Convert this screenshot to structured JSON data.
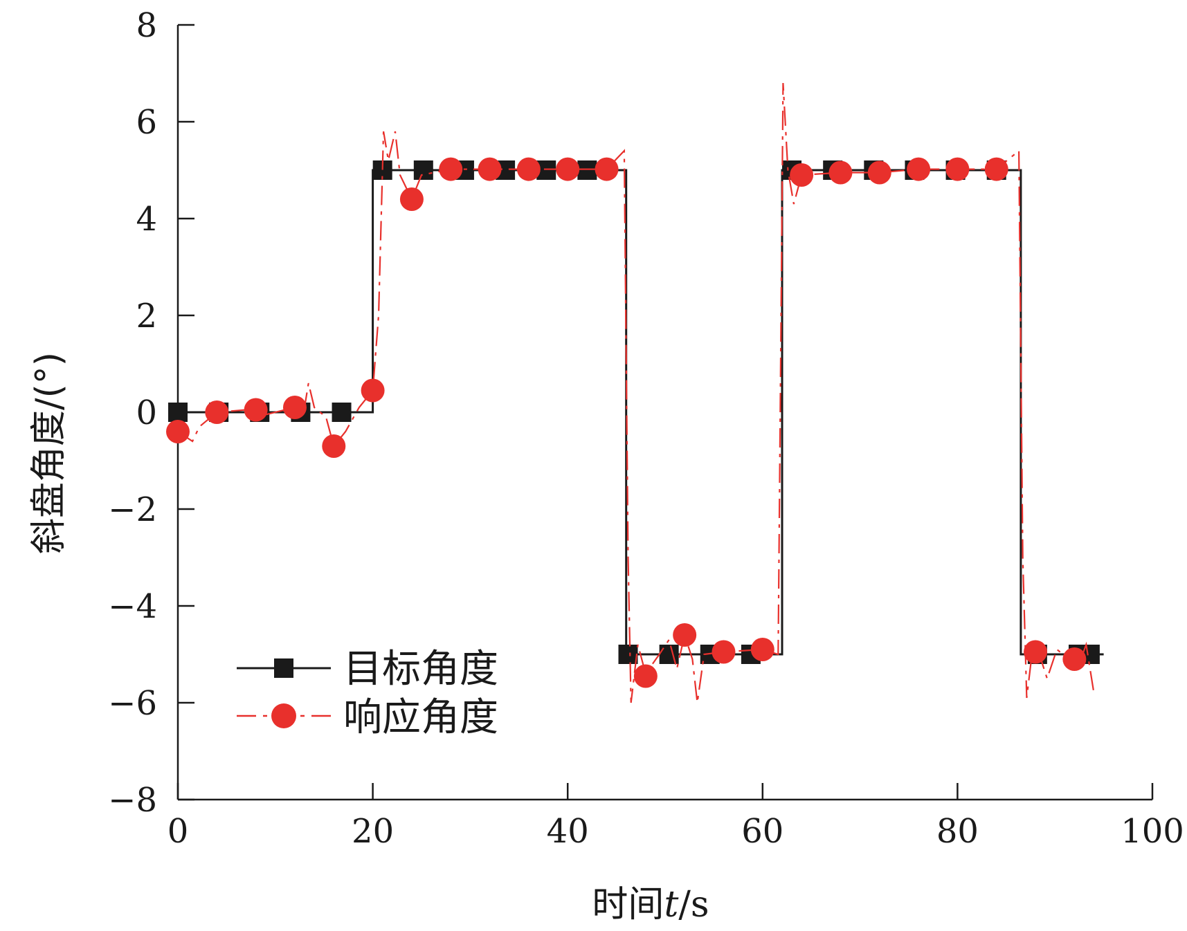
{
  "chart_data": {
    "type": "line",
    "xlabel_prefix": "时间",
    "xlabel_var": "t",
    "xlabel_unit": "/s",
    "ylabel": "斜盘角度/(°)",
    "xlim": [
      0,
      100
    ],
    "ylim": [
      -8,
      8
    ],
    "xticks": [
      0,
      20,
      40,
      60,
      80,
      100
    ],
    "yticks": [
      -8,
      -6,
      -4,
      -2,
      0,
      2,
      4,
      6,
      8
    ],
    "xtick_labels": [
      "0",
      "20",
      "40",
      "60",
      "80",
      "100"
    ],
    "ytick_labels": [
      "−8",
      "−6",
      "−4",
      "−2",
      "0",
      "2",
      "4",
      "6",
      "8"
    ],
    "grid": false,
    "legend_position": "bottom-left",
    "series": [
      {
        "name": "目标角度",
        "color": "#1a1a1a",
        "line_style": "solid",
        "marker": "square",
        "line": [
          [
            0,
            0
          ],
          [
            20,
            0
          ],
          [
            20,
            5
          ],
          [
            46,
            5
          ],
          [
            46,
            -5
          ],
          [
            62,
            -5
          ],
          [
            62,
            5
          ],
          [
            86.5,
            5
          ],
          [
            86.5,
            -5
          ],
          [
            95,
            -5
          ]
        ],
        "markers": [
          [
            0,
            0
          ],
          [
            4.2,
            0
          ],
          [
            8.4,
            0
          ],
          [
            12.6,
            0
          ],
          [
            16.8,
            0
          ],
          [
            21,
            5
          ],
          [
            25.2,
            5
          ],
          [
            29.4,
            5
          ],
          [
            33.6,
            5
          ],
          [
            37.8,
            5
          ],
          [
            42,
            5
          ],
          [
            46.2,
            -5
          ],
          [
            50.4,
            -5
          ],
          [
            54.6,
            -5
          ],
          [
            58.8,
            -5
          ],
          [
            63,
            5
          ],
          [
            67.2,
            5
          ],
          [
            71.4,
            5
          ],
          [
            75.6,
            5
          ],
          [
            79.8,
            5
          ],
          [
            84,
            5
          ],
          [
            88.2,
            -5
          ],
          [
            92.4,
            -5
          ],
          [
            93.6,
            -5
          ]
        ]
      },
      {
        "name": "响应角度",
        "color": "#e8302c",
        "line_style": "dashed",
        "marker": "circle",
        "line": [
          [
            0,
            -0.4
          ],
          [
            1.5,
            -0.6
          ],
          [
            2.2,
            -0.3
          ],
          [
            4,
            0
          ],
          [
            7,
            0.05
          ],
          [
            9,
            -0.05
          ],
          [
            11,
            0.05
          ],
          [
            13,
            0.1
          ],
          [
            13.4,
            0.6
          ],
          [
            14,
            0.1
          ],
          [
            15.2,
            -0.1
          ],
          [
            16,
            -0.7
          ],
          [
            17.2,
            -0.4
          ],
          [
            18.6,
            0.1
          ],
          [
            20,
            0.45
          ],
          [
            20.6,
            2
          ],
          [
            21.1,
            5.8
          ],
          [
            21.6,
            5.2
          ],
          [
            22.3,
            5.8
          ],
          [
            22.8,
            4.9
          ],
          [
            24,
            4.4
          ],
          [
            25,
            4.9
          ],
          [
            28,
            5.02
          ],
          [
            44,
            5.02
          ],
          [
            45.8,
            5.4
          ],
          [
            46.2,
            -3
          ],
          [
            46.5,
            -6
          ],
          [
            47.2,
            -4.8
          ],
          [
            48,
            -5.4
          ],
          [
            49.4,
            -5
          ],
          [
            50.4,
            -4.7
          ],
          [
            51.2,
            -5.3
          ],
          [
            52,
            -4.6
          ],
          [
            52.8,
            -5.1
          ],
          [
            53.3,
            -6
          ],
          [
            54,
            -5
          ],
          [
            56,
            -4.95
          ],
          [
            60,
            -4.9
          ],
          [
            61.6,
            -5
          ],
          [
            62.1,
            6.8
          ],
          [
            62.6,
            5
          ],
          [
            63.2,
            4.3
          ],
          [
            64,
            4.9
          ],
          [
            68,
            4.95
          ],
          [
            72,
            4.95
          ],
          [
            76,
            5.02
          ],
          [
            80,
            5.02
          ],
          [
            84,
            5.02
          ],
          [
            86.3,
            5.4
          ],
          [
            86.7,
            -3
          ],
          [
            87.1,
            -5.9
          ],
          [
            87.7,
            -4.9
          ],
          [
            88.4,
            -5
          ],
          [
            89.2,
            -5.5
          ],
          [
            90.2,
            -4.9
          ],
          [
            91.5,
            -5.1
          ],
          [
            92.3,
            -5.3
          ],
          [
            93.2,
            -4.8
          ],
          [
            94,
            -5.8
          ]
        ],
        "markers": [
          [
            0,
            -0.4
          ],
          [
            4,
            0
          ],
          [
            8,
            0.05
          ],
          [
            12,
            0.1
          ],
          [
            16,
            -0.7
          ],
          [
            20,
            0.45
          ],
          [
            24,
            4.4
          ],
          [
            28,
            5.02
          ],
          [
            32,
            5.02
          ],
          [
            36,
            5.02
          ],
          [
            40,
            5.02
          ],
          [
            44,
            5.02
          ],
          [
            48,
            -5.45
          ],
          [
            52,
            -4.6
          ],
          [
            56,
            -4.95
          ],
          [
            60,
            -4.9
          ],
          [
            64,
            4.9
          ],
          [
            68,
            4.95
          ],
          [
            72,
            4.95
          ],
          [
            76,
            5.02
          ],
          [
            80,
            5.02
          ],
          [
            84,
            5.02
          ],
          [
            88,
            -4.95
          ],
          [
            92,
            -5.1
          ]
        ]
      }
    ]
  }
}
